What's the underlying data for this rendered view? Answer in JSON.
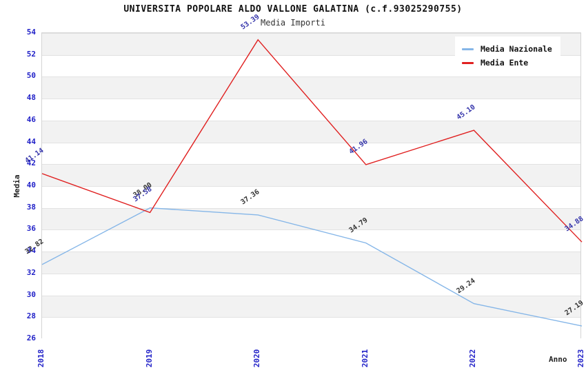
{
  "title": "UNIVERSITA POPOLARE ALDO VALLONE GALATINA (c.f.93025290755)",
  "subtitle": "Media Importi",
  "legend": {
    "items": [
      {
        "label": "Media Nazionale",
        "color": "#85b6e8"
      },
      {
        "label": "Media Ente",
        "color": "#e02020"
      }
    ]
  },
  "colors": {
    "tick_blue": "#2222c8",
    "band_gray": "#f2f2f2",
    "gridline": "#e2e2e2",
    "nazionale_line": "#85b6e8",
    "ente_line": "#e02020",
    "nazionale_label": "#333333",
    "ente_label": "#3333aa"
  },
  "chart_data": {
    "type": "line",
    "x": [
      2018,
      2019,
      2020,
      2021,
      2022,
      2023
    ],
    "series": [
      {
        "name": "Media Nazionale",
        "color": "#85b6e8",
        "label_color": "#333333",
        "values": [
          32.82,
          38.0,
          37.36,
          34.79,
          29.24,
          27.19
        ]
      },
      {
        "name": "Media Ente",
        "color": "#e02020",
        "label_color": "#3333aa",
        "values": [
          41.14,
          37.58,
          53.39,
          41.96,
          45.1,
          34.88
        ]
      }
    ],
    "title": "UNIVERSITA POPOLARE ALDO VALLONE GALATINA (c.f.93025290755)",
    "subtitle": "Media Importi",
    "xlabel": "Anno",
    "ylabel": "Media",
    "ylim": [
      26,
      54
    ],
    "ytick_step": 2,
    "grid": "horizontal-bands",
    "legend_position": "top-right",
    "value_decimals": 2
  }
}
